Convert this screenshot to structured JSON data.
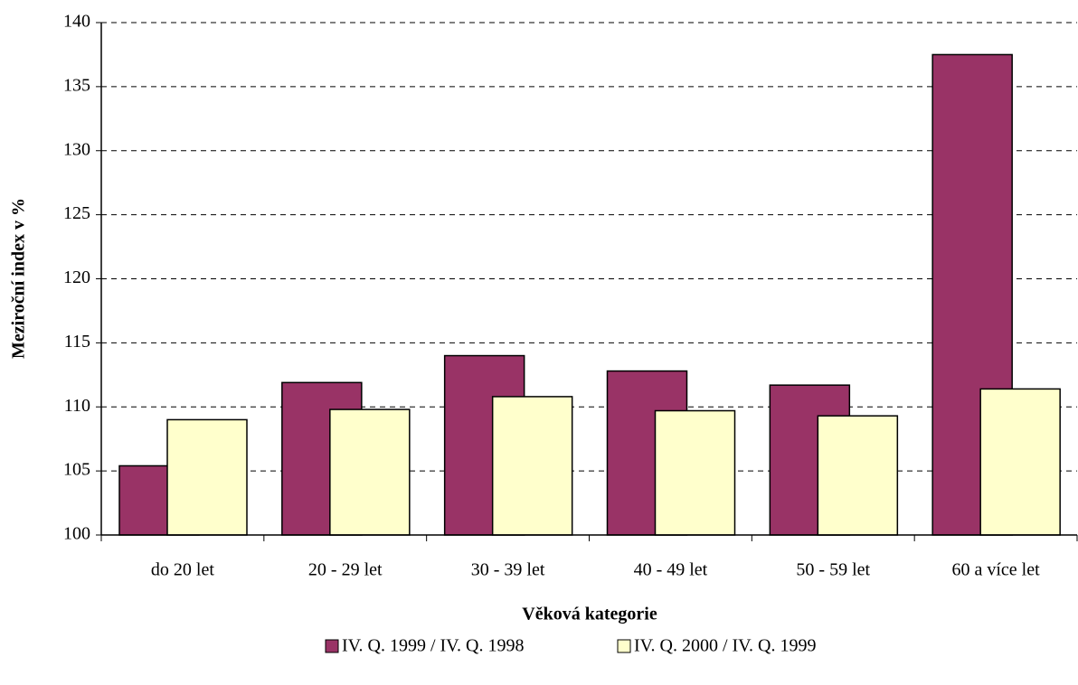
{
  "chart_data": {
    "type": "bar",
    "y_label": "Meziroční index v %",
    "x_label": "Věková kategorie",
    "categories": [
      "do 20 let",
      "20 - 29 let",
      "30 - 39 let",
      "40 - 49 let",
      "50 - 59 let",
      "60 a více let"
    ],
    "series": [
      {
        "name": "IV. Q. 1999 / IV. Q. 1998",
        "color": "#993366",
        "values": [
          105.4,
          111.9,
          114.0,
          112.8,
          111.7,
          137.5
        ]
      },
      {
        "name": "IV. Q. 2000 / IV. Q. 1999",
        "color": "#ffffcc",
        "values": [
          109.0,
          109.8,
          110.8,
          109.7,
          109.3,
          111.4
        ]
      }
    ],
    "ylim": [
      100,
      140
    ],
    "yticks": [
      100,
      105,
      110,
      115,
      120,
      125,
      130,
      135,
      140
    ],
    "grid": true,
    "legend": "bottom"
  }
}
